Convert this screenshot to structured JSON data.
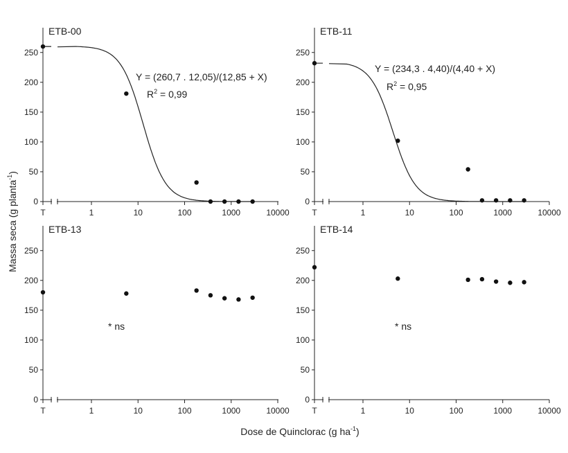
{
  "figure": {
    "ylabel_main": "Massa seca (g planta",
    "ylabel_sup": "-1",
    "ylabel_close": ")",
    "xlabel_main": "Dose de Quinclorac (g ha",
    "xlabel_sup": "-1",
    "xlabel_close": ")"
  },
  "chart_data": [
    {
      "type": "scatter",
      "title": "ETB-00",
      "x_scale": "log",
      "x_ticks": [
        "T",
        "1",
        "10",
        "100",
        "1000",
        "10000"
      ],
      "y_ticks": [
        "0",
        "50",
        "100",
        "150",
        "200",
        "250"
      ],
      "ylim": [
        0,
        280
      ],
      "x": [
        "T",
        5.6,
        180,
        360,
        720,
        1440,
        2880
      ],
      "values": [
        260,
        181,
        32,
        0,
        0,
        0,
        0
      ],
      "fit": {
        "a": 260.7,
        "b": 12.05,
        "c": 12.85
      },
      "equation": "Y = (260,7 . 12,05)/(12,85 + X)",
      "r2_prefix": "R",
      "r2_sup": "2",
      "r2_value": " = 0,99",
      "note": ""
    },
    {
      "type": "scatter",
      "title": "ETB-11",
      "x_scale": "log",
      "x_ticks": [
        "T",
        "1",
        "10",
        "100",
        "1000",
        "10000"
      ],
      "y_ticks": [
        "0",
        "50",
        "100",
        "150",
        "200",
        "250"
      ],
      "ylim": [
        0,
        280
      ],
      "x": [
        "T",
        5.6,
        180,
        360,
        720,
        1440,
        2880
      ],
      "values": [
        232,
        102,
        54,
        2,
        2,
        2,
        2
      ],
      "fit": {
        "a": 234.3,
        "b": 4.4,
        "c": 4.4
      },
      "equation": "Y = (234,3 . 4,40)/(4,40 + X)",
      "r2_prefix": "R",
      "r2_sup": "2",
      "r2_value": " = 0,95",
      "note": ""
    },
    {
      "type": "scatter",
      "title": "ETB-13",
      "x_scale": "log",
      "x_ticks": [
        "T",
        "1",
        "10",
        "100",
        "1000",
        "10000"
      ],
      "y_ticks": [
        "0",
        "50",
        "100",
        "150",
        "200",
        "250"
      ],
      "ylim": [
        0,
        280
      ],
      "x": [
        "T",
        5.6,
        180,
        360,
        720,
        1440,
        2880
      ],
      "values": [
        180,
        178,
        183,
        175,
        170,
        168,
        171
      ],
      "fit": null,
      "equation": "",
      "r2_prefix": "",
      "r2_sup": "",
      "r2_value": "",
      "note": "* ns"
    },
    {
      "type": "scatter",
      "title": "ETB-14",
      "x_scale": "log",
      "x_ticks": [
        "T",
        "1",
        "10",
        "100",
        "1000",
        "10000"
      ],
      "y_ticks": [
        "0",
        "50",
        "100",
        "150",
        "200",
        "250"
      ],
      "ylim": [
        0,
        280
      ],
      "x": [
        "T",
        5.6,
        180,
        360,
        720,
        1440,
        2880
      ],
      "values": [
        222,
        203,
        201,
        202,
        198,
        196,
        197
      ],
      "fit": null,
      "equation": "",
      "r2_prefix": "",
      "r2_sup": "",
      "r2_value": "",
      "note": "* ns"
    }
  ]
}
